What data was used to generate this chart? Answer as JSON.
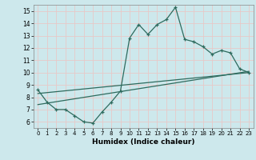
{
  "title": "",
  "xlabel": "Humidex (Indice chaleur)",
  "background_color": "#cde8ec",
  "line_color": "#2e6b5e",
  "grid_color": "#e8c8c8",
  "xlim": [
    -0.5,
    23.5
  ],
  "ylim": [
    5.5,
    15.5
  ],
  "xticks": [
    0,
    1,
    2,
    3,
    4,
    5,
    6,
    7,
    8,
    9,
    10,
    11,
    12,
    13,
    14,
    15,
    16,
    17,
    18,
    19,
    20,
    21,
    22,
    23
  ],
  "yticks": [
    6,
    7,
    8,
    9,
    10,
    11,
    12,
    13,
    14,
    15
  ],
  "line1_x": [
    0,
    1,
    2,
    3,
    4,
    5,
    6,
    7,
    8,
    9,
    10,
    11,
    12,
    13,
    14,
    15,
    16,
    17,
    18,
    19,
    20,
    21,
    22,
    23
  ],
  "line1_y": [
    8.6,
    7.6,
    7.0,
    7.0,
    6.5,
    6.0,
    5.9,
    6.8,
    7.6,
    8.5,
    12.8,
    13.9,
    13.1,
    13.9,
    14.3,
    15.3,
    12.7,
    12.5,
    12.1,
    11.5,
    11.8,
    11.6,
    10.3,
    10.0
  ],
  "line2_x": [
    0,
    23
  ],
  "line2_y": [
    7.4,
    10.1
  ],
  "line3_x": [
    0,
    23
  ],
  "line3_y": [
    8.3,
    10.0
  ]
}
